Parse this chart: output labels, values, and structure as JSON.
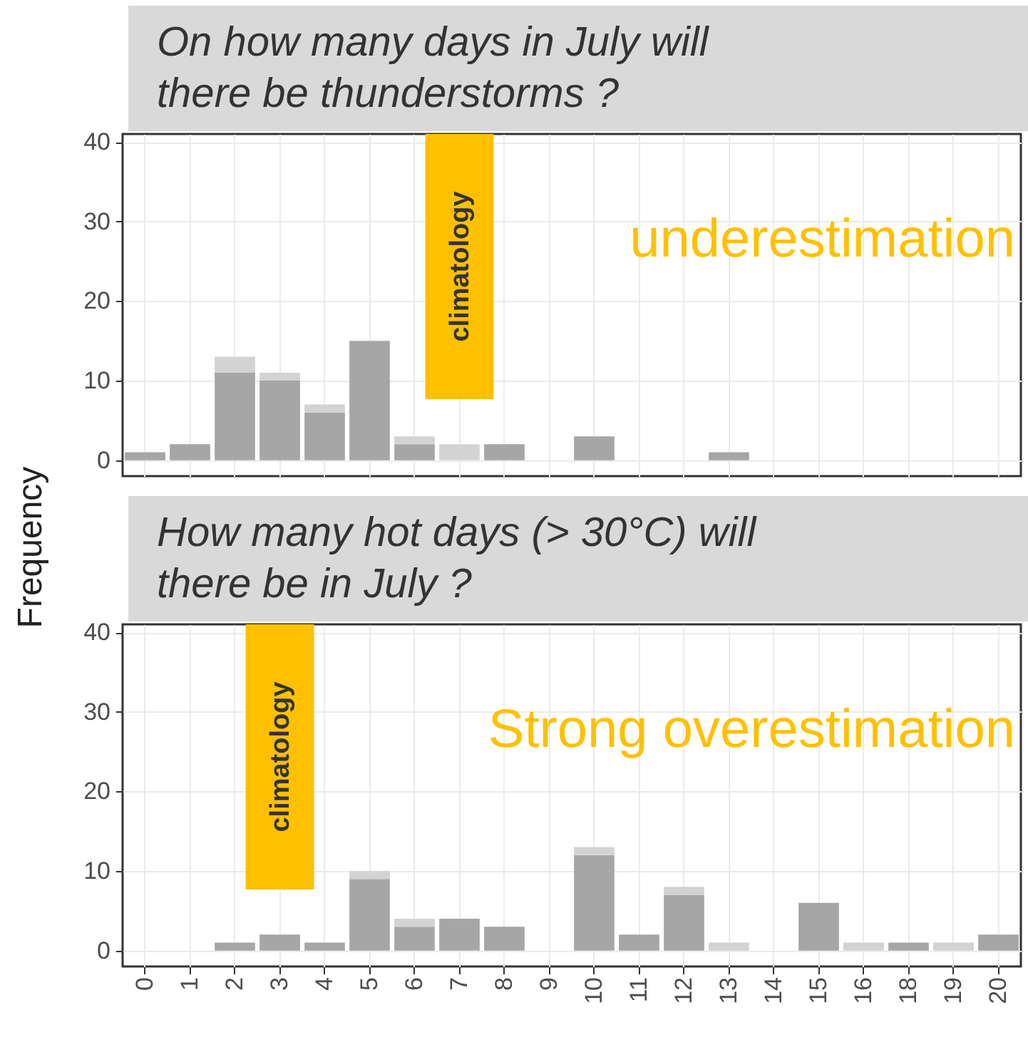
{
  "chart_data": [
    {
      "type": "bar",
      "title": "On how many days in July will\nthere be thunderstorms ?",
      "ylabel": "Frequency",
      "stacked": true,
      "grid": true,
      "tick_labels": "y",
      "categories": [
        "0",
        "1",
        "2",
        "3",
        "4",
        "5",
        "6",
        "7",
        "8",
        "9",
        "10",
        "11",
        "12",
        "13",
        "14",
        "15",
        "16",
        "18",
        "19",
        "20"
      ],
      "series": [
        {
          "color": "#a6a6a6",
          "values": [
            1,
            2,
            11,
            10,
            6,
            15,
            2,
            0,
            2,
            0,
            3,
            0,
            0,
            1,
            0,
            0,
            0,
            0,
            0,
            0
          ]
        },
        {
          "color": "#d3d3d3",
          "values": [
            0,
            0,
            2,
            1,
            1,
            0,
            1,
            2,
            0,
            0,
            0,
            0,
            0,
            0,
            0,
            0,
            0,
            0,
            0,
            0
          ]
        }
      ],
      "ylim": [
        -2,
        41
      ],
      "yticks": [
        0,
        10,
        20,
        30,
        40
      ],
      "ref_lines": [
        {
          "axis": "x",
          "value": "7",
          "label": "climatology",
          "color": "#ffc000"
        }
      ],
      "annotations": [
        "underestimation"
      ]
    },
    {
      "type": "bar",
      "title": "How many hot days (> 30°C) will\nthere be in July ?",
      "stacked": true,
      "grid": true,
      "categories": [
        "0",
        "1",
        "2",
        "3",
        "4",
        "5",
        "6",
        "7",
        "8",
        "9",
        "10",
        "11",
        "12",
        "13",
        "14",
        "15",
        "16",
        "18",
        "19",
        "20"
      ],
      "series": [
        {
          "color": "#a6a6a6",
          "values": [
            0,
            0,
            1,
            2,
            1,
            9,
            3,
            4,
            3,
            0,
            12,
            2,
            7,
            0,
            0,
            6,
            0,
            1,
            0,
            2
          ]
        },
        {
          "color": "#d3d3d3",
          "values": [
            0,
            0,
            0,
            0,
            0,
            1,
            1,
            0,
            0,
            0,
            1,
            0,
            1,
            1,
            0,
            0,
            1,
            0,
            1,
            0
          ]
        }
      ],
      "ylim": [
        -2,
        41
      ],
      "yticks": [
        0,
        10,
        20,
        30,
        40
      ],
      "ref_lines": [
        {
          "axis": "x",
          "value": "3",
          "label": "climatology",
          "color": "#ffc000"
        }
      ],
      "annotations": [
        "Strong overestimation"
      ]
    }
  ]
}
